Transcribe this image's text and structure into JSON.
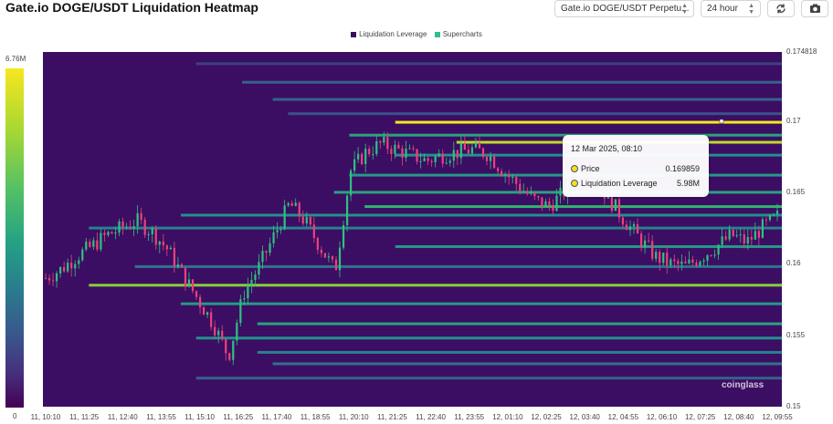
{
  "header": {
    "title": "Gate.io DOGE/USDT Liquidation Heatmap",
    "pair_select": "Gate.io DOGE/USDT Perpetu...",
    "range_select": "24 hour",
    "refresh_icon": "refresh-icon",
    "camera_icon": "camera-icon"
  },
  "legend": {
    "items": [
      {
        "label": "Liquidation Leverage",
        "color": "#3a0d5e"
      },
      {
        "label": "Supercharts",
        "color": "#2fc08a"
      }
    ]
  },
  "colorbar": {
    "max_label": "6.76M",
    "min_label": "0"
  },
  "tooltip": {
    "time": "12 Mar 2025, 08:10",
    "price_label": "Price",
    "price_value": "0.169859",
    "lev_label": "Liquidation Leverage",
    "lev_value": "5.98M"
  },
  "watermark": "coinglass",
  "chart_data": {
    "type": "heatmap",
    "title": "Gate.io DOGE/USDT Liquidation Heatmap",
    "y_ticks": [
      "0.174818",
      "0.17",
      "0.165",
      "0.16",
      "0.155",
      "0.15"
    ],
    "ylim": [
      0.15,
      0.174818
    ],
    "x_ticks": [
      "11, 10:10",
      "11, 11:25",
      "11, 12:40",
      "11, 13:55",
      "11, 15:10",
      "11, 16:25",
      "11, 17:40",
      "11, 18:55",
      "11, 20:10",
      "11, 21:25",
      "11, 22:40",
      "11, 23:55",
      "12, 01:10",
      "12, 02:25",
      "12, 03:40",
      "12, 04:55",
      "12, 06:10",
      "12, 07:25",
      "12, 08:40",
      "12, 09:55"
    ],
    "colorscale": {
      "min": 0,
      "max": "6.76M"
    },
    "price_path": [
      [
        0,
        0.159
      ],
      [
        1,
        0.1596
      ],
      [
        2,
        0.1605
      ],
      [
        3,
        0.1612
      ],
      [
        4,
        0.162
      ],
      [
        5,
        0.1625
      ],
      [
        6,
        0.163
      ],
      [
        7,
        0.1622
      ],
      [
        8,
        0.161
      ],
      [
        9,
        0.1592
      ],
      [
        10,
        0.1575
      ],
      [
        11,
        0.1558
      ],
      [
        12,
        0.1535
      ],
      [
        13,
        0.158
      ],
      [
        14,
        0.1598
      ],
      [
        15,
        0.162
      ],
      [
        16,
        0.1642
      ],
      [
        17,
        0.163
      ],
      [
        18,
        0.1612
      ],
      [
        19,
        0.1595
      ],
      [
        20,
        0.1665
      ],
      [
        21,
        0.1678
      ],
      [
        22,
        0.1684
      ],
      [
        23,
        0.168
      ],
      [
        24,
        0.1676
      ],
      [
        25,
        0.1672
      ],
      [
        26,
        0.1676
      ],
      [
        27,
        0.1678
      ],
      [
        28,
        0.168
      ],
      [
        29,
        0.1677
      ],
      [
        30,
        0.1665
      ],
      [
        31,
        0.1655
      ],
      [
        32,
        0.1645
      ],
      [
        33,
        0.164
      ],
      [
        34,
        0.165
      ],
      [
        35,
        0.1664
      ],
      [
        36,
        0.166
      ],
      [
        37,
        0.1645
      ],
      [
        38,
        0.163
      ],
      [
        39,
        0.1617
      ],
      [
        40,
        0.1605
      ],
      [
        41,
        0.16
      ],
      [
        42,
        0.1598
      ],
      [
        43,
        0.1605
      ],
      [
        44,
        0.1612
      ],
      [
        45,
        0.162
      ],
      [
        46,
        0.1615
      ],
      [
        47,
        0.1625
      ],
      [
        48,
        0.1633
      ]
    ],
    "liquidation_levels": [
      {
        "price": 0.174,
        "t0": 10,
        "intensity": 0.2
      },
      {
        "price": 0.1727,
        "t0": 13,
        "intensity": 0.3
      },
      {
        "price": 0.1715,
        "t0": 15,
        "intensity": 0.3
      },
      {
        "price": 0.1705,
        "t0": 16,
        "intensity": 0.25
      },
      {
        "price": 0.1699,
        "t0": 23,
        "intensity": 1.0
      },
      {
        "price": 0.169,
        "t0": 20,
        "intensity": 0.55
      },
      {
        "price": 0.1685,
        "t0": 27,
        "intensity": 0.9
      },
      {
        "price": 0.1676,
        "t0": 23,
        "intensity": 0.45
      },
      {
        "price": 0.1662,
        "t0": 20,
        "intensity": 0.5
      },
      {
        "price": 0.165,
        "t0": 19,
        "intensity": 0.55
      },
      {
        "price": 0.164,
        "t0": 21,
        "intensity": 0.65
      },
      {
        "price": 0.1634,
        "t0": 9,
        "intensity": 0.45
      },
      {
        "price": 0.1625,
        "t0": 3,
        "intensity": 0.4
      },
      {
        "price": 0.1612,
        "t0": 23,
        "intensity": 0.5
      },
      {
        "price": 0.1598,
        "t0": 6,
        "intensity": 0.35
      },
      {
        "price": 0.1585,
        "t0": 3,
        "intensity": 0.8
      },
      {
        "price": 0.1572,
        "t0": 9,
        "intensity": 0.5
      },
      {
        "price": 0.1558,
        "t0": 14,
        "intensity": 0.55
      },
      {
        "price": 0.1548,
        "t0": 10,
        "intensity": 0.45
      },
      {
        "price": 0.1538,
        "t0": 14,
        "intensity": 0.4
      },
      {
        "price": 0.153,
        "t0": 15,
        "intensity": 0.35
      },
      {
        "price": 0.152,
        "t0": 10,
        "intensity": 0.3
      }
    ]
  }
}
